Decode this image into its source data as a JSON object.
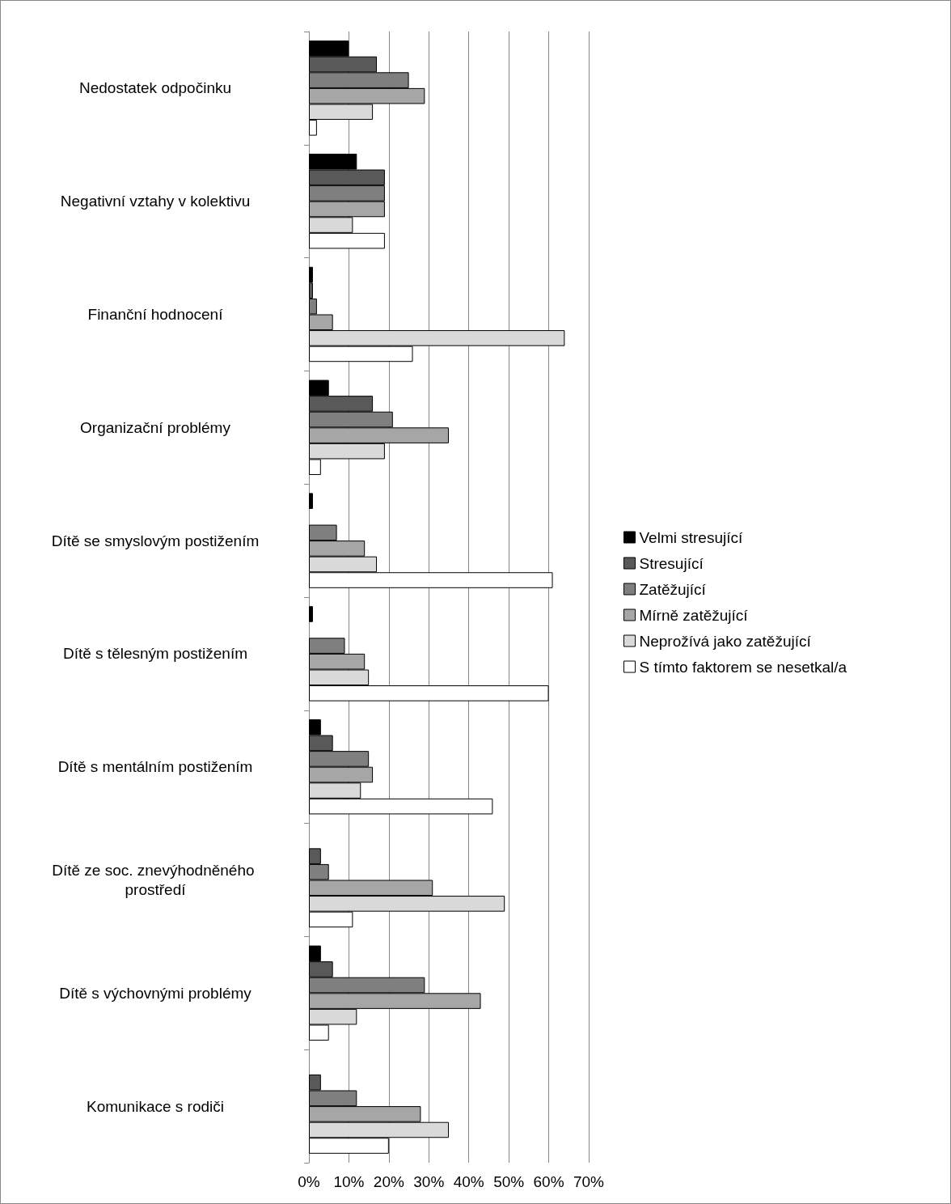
{
  "chart_data": {
    "type": "bar",
    "orientation": "horizontal",
    "categories": [
      "Nedostatek odpočinku",
      "Negativní vztahy v kolektivu",
      "Finanční hodnocení",
      "Organizační problémy",
      "Dítě se smyslovým postižením",
      "Dítě s tělesným postižením",
      "Dítě s mentálním postižením",
      "Dítě ze soc. znevýhodněného prostředí",
      "Dítě s výchovnými problémy",
      "Komunikace s rodiči"
    ],
    "series": [
      {
        "name": "Velmi stresující",
        "color": "#000000",
        "values": [
          10,
          12,
          1,
          5,
          1,
          1,
          3,
          0,
          3,
          0
        ]
      },
      {
        "name": "Stresující",
        "color": "#595959",
        "values": [
          17,
          19,
          1,
          16,
          0,
          0,
          6,
          3,
          6,
          3
        ]
      },
      {
        "name": "Zatěžující",
        "color": "#7f7f7f",
        "values": [
          25,
          19,
          2,
          21,
          7,
          9,
          15,
          5,
          29,
          12
        ]
      },
      {
        "name": "Mírně zatěžující",
        "color": "#a6a6a6",
        "values": [
          29,
          19,
          6,
          35,
          14,
          14,
          16,
          31,
          43,
          28
        ]
      },
      {
        "name": "Neprožívá jako zatěžující",
        "color": "#d9d9d9",
        "values": [
          16,
          11,
          64,
          19,
          17,
          15,
          13,
          49,
          12,
          35
        ]
      },
      {
        "name": "S tímto faktorem se nesetkal/a",
        "color": "#ffffff",
        "values": [
          2,
          19,
          26,
          3,
          61,
          60,
          46,
          11,
          5,
          20
        ]
      }
    ],
    "xlim": [
      0,
      70
    ],
    "xticks": [
      {
        "value": 0,
        "label": "0%"
      },
      {
        "value": 10,
        "label": "10%"
      },
      {
        "value": 20,
        "label": "20%"
      },
      {
        "value": 30,
        "label": "30%"
      },
      {
        "value": 40,
        "label": "40%"
      },
      {
        "value": 50,
        "label": "50%"
      },
      {
        "value": 60,
        "label": "60%"
      },
      {
        "value": 70,
        "label": "70%"
      }
    ],
    "grid": "x",
    "legend": "right"
  }
}
